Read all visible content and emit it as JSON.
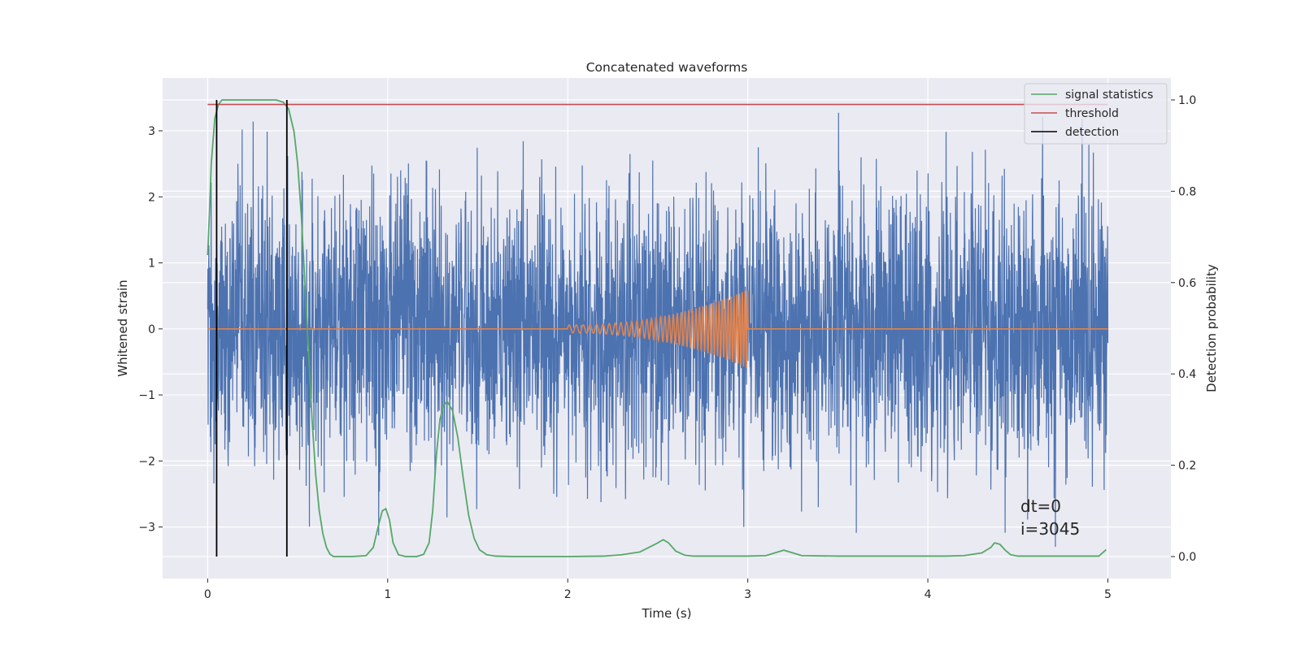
{
  "chart_data": {
    "type": "line",
    "title": "Concatenated waveforms",
    "xlabel": "Time (s)",
    "ylabel": "Whitened strain",
    "ylabel_right": "Detection probability",
    "xlim": [
      -0.25,
      5.35
    ],
    "ylim": [
      -3.78,
      3.8
    ],
    "ylim_right": [
      -0.048,
      1.048
    ],
    "xticks": [
      0,
      1,
      2,
      3,
      4,
      5
    ],
    "xtick_labels": [
      "0",
      "1",
      "2",
      "3",
      "4",
      "5"
    ],
    "yticks": [
      -3,
      -2,
      -1,
      0,
      1,
      2,
      3
    ],
    "ytick_labels": [
      "−3",
      "−2",
      "−1",
      "0",
      "1",
      "2",
      "3"
    ],
    "yticks_right": [
      0.0,
      0.2,
      0.4,
      0.6,
      0.8,
      1.0
    ],
    "ytick_labels_right": [
      "0.0",
      "0.2",
      "0.4",
      "0.6",
      "0.8",
      "1.0"
    ],
    "grid": true,
    "legend_position": "top-right",
    "colors": {
      "background": "#eaeaf2",
      "grid": "#ffffff",
      "strain": "#4c72b0",
      "injection": "#dd8452",
      "statistics": "#55a868",
      "threshold": "#c44e52",
      "detection": "#000000"
    },
    "noise": {
      "x_range": [
        0,
        5
      ],
      "typical_envelope": [
        -0.7,
        0.7
      ],
      "max": 3.45,
      "min": -3.3
    },
    "injection": {
      "x_range": [
        2.0,
        3.0
      ],
      "amplitude_start": 0.06,
      "amplitude_end": 0.6,
      "freq_start_hz": 25,
      "freq_end_hz": 68
    },
    "series": [
      {
        "name": "signal statistics",
        "axis": "right",
        "x": [
          0.0,
          0.01,
          0.02,
          0.04,
          0.06,
          0.08,
          0.1,
          0.15,
          0.2,
          0.3,
          0.38,
          0.42,
          0.45,
          0.48,
          0.5,
          0.52,
          0.54,
          0.56,
          0.58,
          0.6,
          0.62,
          0.64,
          0.66,
          0.68,
          0.7,
          0.75,
          0.8,
          0.88,
          0.92,
          0.95,
          0.97,
          0.99,
          1.01,
          1.03,
          1.06,
          1.1,
          1.16,
          1.2,
          1.23,
          1.25,
          1.27,
          1.29,
          1.31,
          1.33,
          1.36,
          1.39,
          1.42,
          1.45,
          1.48,
          1.51,
          1.55,
          1.6,
          1.7,
          1.8,
          2.0,
          2.2,
          2.3,
          2.4,
          2.45,
          2.5,
          2.53,
          2.56,
          2.6,
          2.65,
          2.7,
          2.8,
          2.9,
          3.0,
          3.1,
          3.15,
          3.2,
          3.25,
          3.3,
          3.5,
          3.7,
          3.9,
          4.1,
          4.2,
          4.3,
          4.35,
          4.37,
          4.4,
          4.43,
          4.46,
          4.5,
          4.6,
          4.8,
          4.95,
          4.99
        ],
        "y": [
          0.66,
          0.75,
          0.86,
          0.96,
          0.99,
          1.0,
          1.0,
          1.0,
          1.0,
          1.0,
          1.0,
          0.995,
          0.98,
          0.93,
          0.86,
          0.75,
          0.6,
          0.45,
          0.3,
          0.18,
          0.1,
          0.05,
          0.02,
          0.005,
          0.0,
          0.0,
          0.0,
          0.002,
          0.02,
          0.07,
          0.1,
          0.105,
          0.08,
          0.03,
          0.004,
          0.0,
          0.0,
          0.005,
          0.03,
          0.1,
          0.22,
          0.3,
          0.33,
          0.34,
          0.32,
          0.26,
          0.17,
          0.09,
          0.04,
          0.015,
          0.004,
          0.001,
          0.0,
          0.0,
          0.0,
          0.001,
          0.004,
          0.01,
          0.02,
          0.03,
          0.037,
          0.03,
          0.012,
          0.003,
          0.001,
          0.001,
          0.001,
          0.001,
          0.002,
          0.008,
          0.014,
          0.008,
          0.002,
          0.001,
          0.001,
          0.001,
          0.001,
          0.002,
          0.008,
          0.02,
          0.03,
          0.027,
          0.014,
          0.004,
          0.001,
          0.001,
          0.001,
          0.001,
          0.015
        ]
      },
      {
        "name": "threshold",
        "axis": "right",
        "x": [
          0,
          5
        ],
        "y": [
          0.99,
          0.99
        ]
      },
      {
        "name": "detection",
        "axis": "right",
        "x_positions": [
          0.05,
          0.44
        ],
        "y_range": [
          0,
          1
        ]
      }
    ],
    "annotations": [
      "dt=0",
      "i=3045"
    ]
  }
}
